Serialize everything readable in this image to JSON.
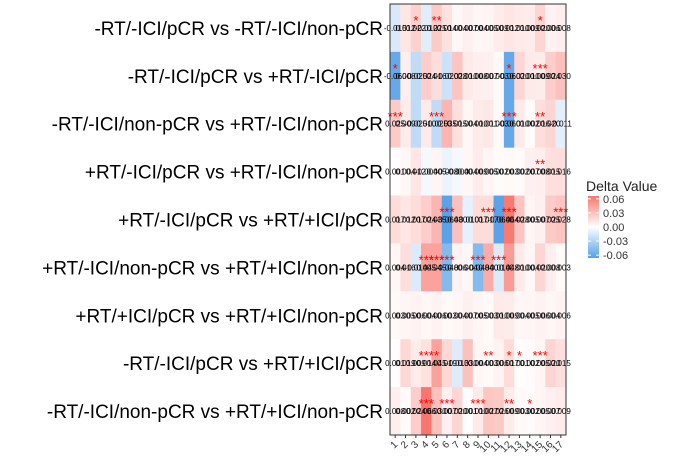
{
  "chart_data": {
    "type": "heatmap",
    "title": "",
    "xlabel": "",
    "ylabel": "",
    "x_categories": [
      "1",
      "2",
      "3",
      "4",
      "5",
      "6",
      "7",
      "8",
      "9",
      "10",
      "11",
      "12",
      "13",
      "14",
      "15",
      "16",
      "17"
    ],
    "y_categories": [
      "-RT/-ICI/pCR vs -RT/-ICI/non-pCR",
      "-RT/-ICI/pCR vs +RT/-ICI/pCR",
      "-RT/-ICI/non-pCR vs +RT/-ICI/non-pCR",
      "+RT/-ICI/pCR vs +RT/-ICI/non-pCR",
      "+RT/-ICI/pCR vs +RT/+ICI/pCR",
      "+RT/-ICI/non-pCR vs +RT/+ICI/non-pCR",
      "+RT/+ICI/pCR vs +RT/+ICI/non-pCR",
      "-RT/-ICI/pCR vs +RT/+ICI/pCR",
      "-RT/-ICI/non-pCR vs +RT/+ICI/non-pCR"
    ],
    "values": [
      [
        -0.015,
        0.012,
        0.022,
        -0.012,
        0.025,
        0.014,
        0.004,
        0.007,
        0.004,
        0.005,
        0.009,
        0.012,
        0.01,
        0.009,
        0.02,
        0.006,
        0.008
      ],
      [
        -0.06,
        0.008,
        -0.025,
        0.024,
        0.016,
        -0.02,
        0.028,
        0.01,
        0.008,
        0.007,
        0.003,
        -0.06,
        0.02,
        0.01,
        0.009,
        0.024,
        0.03
      ],
      [
        0.025,
        0.009,
        -0.025,
        0.01,
        -0.025,
        0.035,
        0.015,
        0.004,
        0.01,
        0.011,
        0.003,
        -0.06,
        0.01,
        0.002,
        0.016,
        0.02,
        -0.011
      ],
      [
        0.001,
        0.004,
        0.012,
        -0.004,
        0.005,
        -0.008,
        -0.004,
        0.004,
        0.009,
        0.005,
        0.002,
        0.003,
        0.002,
        0.007,
        0.008,
        0.015,
        0.016
      ],
      [
        0.017,
        0.012,
        0.017,
        0.024,
        0.035,
        -0.064,
        0.03,
        -0.01,
        0.017,
        0.017,
        -0.064,
        0.064,
        0.028,
        0.005,
        0.007,
        0.025,
        0.028
      ],
      [
        0.004,
        0.016,
        -0.014,
        0.045,
        0.045,
        -0.048,
        0.006,
        0.004,
        -0.048,
        0.04,
        -0.014,
        0.048,
        0.01,
        0.004,
        0.02,
        0.008,
        0.003
      ],
      [
        0.003,
        0.005,
        0.006,
        0.004,
        0.006,
        0.003,
        0.004,
        0.007,
        0.005,
        0.003,
        0.01,
        0.009,
        0.004,
        0.005,
        0.006,
        0.004,
        0.006
      ],
      [
        0.001,
        0.019,
        0.009,
        0.014,
        0.045,
        0.019,
        -0.013,
        0.03,
        0.004,
        0.003,
        0.006,
        0.017,
        0.001,
        0.002,
        0.005,
        0.02,
        0.015
      ],
      [
        0.008,
        0.002,
        0.024,
        0.066,
        0.03,
        0.007,
        0.02,
        0.001,
        0.01,
        0.027,
        0.026,
        0.009,
        0.003,
        0.002,
        0.005,
        0.007,
        0.009
      ]
    ],
    "cell_labels": [
      [
        "-0.015",
        "0.012",
        "0.022",
        "-0.012",
        "0.025",
        "0.014",
        "0.004",
        "0.007",
        "0.004",
        "0.005",
        "0.009",
        "0.012",
        "0.010",
        "0.009",
        "0.020",
        "0.006",
        "0.008"
      ],
      [
        "-0.060",
        "0.008",
        "-0.025",
        "0.024",
        "0.016",
        "-0.020",
        "0.028",
        "0.010",
        "0.008",
        "0.007",
        "0.003",
        "-0.060",
        "0.020",
        "0.010",
        "0.009",
        "0.024",
        "0.030"
      ],
      [
        "0.025",
        "0.009",
        "-0.025",
        "0.010",
        "-0.025",
        "0.035",
        "0.015",
        "0.004",
        "0.010",
        "0.011",
        "0.003",
        "-0.060",
        "0.010",
        "0.002",
        "0.016",
        "0.020",
        "-0.011"
      ],
      [
        "0.001",
        "0.004",
        "0.012",
        "-0.004",
        "0.005",
        "-0.008",
        "-0.004",
        "0.004",
        "0.009",
        "0.005",
        "0.002",
        "0.003",
        "0.002",
        "0.007",
        "0.008",
        "0.015",
        "0.016"
      ],
      [
        "0.017",
        "0.012",
        "0.017",
        "0.024",
        "0.035",
        "-0.064",
        "0.030",
        "-0.010",
        "0.017",
        "0.017",
        "-0.064",
        "0.064",
        "0.028",
        "0.005",
        "0.007",
        "0.025",
        "0.028"
      ],
      [
        "0.004",
        "0.016",
        "-0.014",
        "0.045",
        "0.045",
        "-0.048",
        "0.006",
        "0.004",
        "-0.048",
        "0.040",
        "-0.014",
        "0.048",
        "0.010",
        "0.004",
        "0.020",
        "0.008",
        "0.003"
      ],
      [
        "0.003",
        "0.005",
        "0.006",
        "0.004",
        "0.006",
        "0.003",
        "0.004",
        "0.007",
        "0.005",
        "0.003",
        "0.010",
        "0.009",
        "0.004",
        "0.005",
        "0.006",
        "0.004",
        "0.006"
      ],
      [
        "0.001",
        "0.019",
        "0.009",
        "0.014",
        "0.045",
        "0.019",
        "-0.013",
        "0.030",
        "0.004",
        "0.003",
        "0.006",
        "0.017",
        "0.001",
        "0.002",
        "0.005",
        "0.020",
        "0.015"
      ],
      [
        "0.008",
        "0.002",
        "0.024",
        "0.066",
        "0.030",
        "0.007",
        "0.020",
        "0.001",
        "0.010",
        "0.027",
        "0.026",
        "0.009",
        "0.003",
        "0.002",
        "0.005",
        "0.007",
        "0.009"
      ]
    ],
    "significance": [
      [
        "",
        "",
        "*",
        "",
        "**",
        "",
        "",
        "",
        "",
        "",
        "",
        "",
        "",
        "",
        "*",
        "",
        ""
      ],
      [
        "*",
        "",
        "",
        "",
        "",
        "",
        "",
        "",
        "",
        "",
        "",
        "*",
        "",
        "",
        "***",
        "",
        ""
      ],
      [
        "***",
        "",
        "",
        "",
        "***",
        "",
        "",
        "",
        "",
        "",
        "",
        "***",
        "",
        "",
        "**",
        "",
        ""
      ],
      [
        "",
        "",
        "",
        "",
        "",
        "",
        "",
        "",
        "",
        "",
        "",
        "",
        "",
        "",
        "**",
        "",
        ""
      ],
      [
        "",
        "",
        "",
        "",
        "",
        "***",
        "",
        "",
        "",
        "***",
        "",
        "***",
        "",
        "",
        "",
        "",
        "***"
      ],
      [
        "",
        "",
        "",
        "***",
        "***",
        "***",
        "",
        "",
        "***",
        "",
        "***",
        "",
        "",
        "",
        "",
        "",
        ""
      ],
      [
        "",
        "",
        "",
        "",
        "",
        "",
        "",
        "",
        "",
        "",
        "",
        "",
        "",
        "",
        "",
        "",
        ""
      ],
      [
        "",
        "",
        "",
        "***",
        "*",
        "",
        "",
        "",
        "",
        "**",
        "",
        "*",
        "*",
        "",
        "***",
        "",
        ""
      ],
      [
        "",
        "",
        "",
        "***",
        "",
        "***",
        "",
        "",
        "***",
        "",
        "",
        "**",
        "",
        "*",
        "",
        "",
        ""
      ]
    ],
    "legend": {
      "title": "Delta Value",
      "ticks": [
        "0.06",
        "0.03",
        "0.00",
        "-0.03",
        "-0.06"
      ],
      "tick_values": [
        0.06,
        0.03,
        0.0,
        -0.03,
        -0.06
      ],
      "placement": "right"
    },
    "colors": {
      "positive": "#F8766D",
      "zero": "#FFFFFF",
      "negative": "#56A0E8",
      "significance_text": "#FF0000",
      "cell_text": "#000000"
    },
    "value_range": [
      -0.066,
      0.066
    ],
    "grid": false
  }
}
